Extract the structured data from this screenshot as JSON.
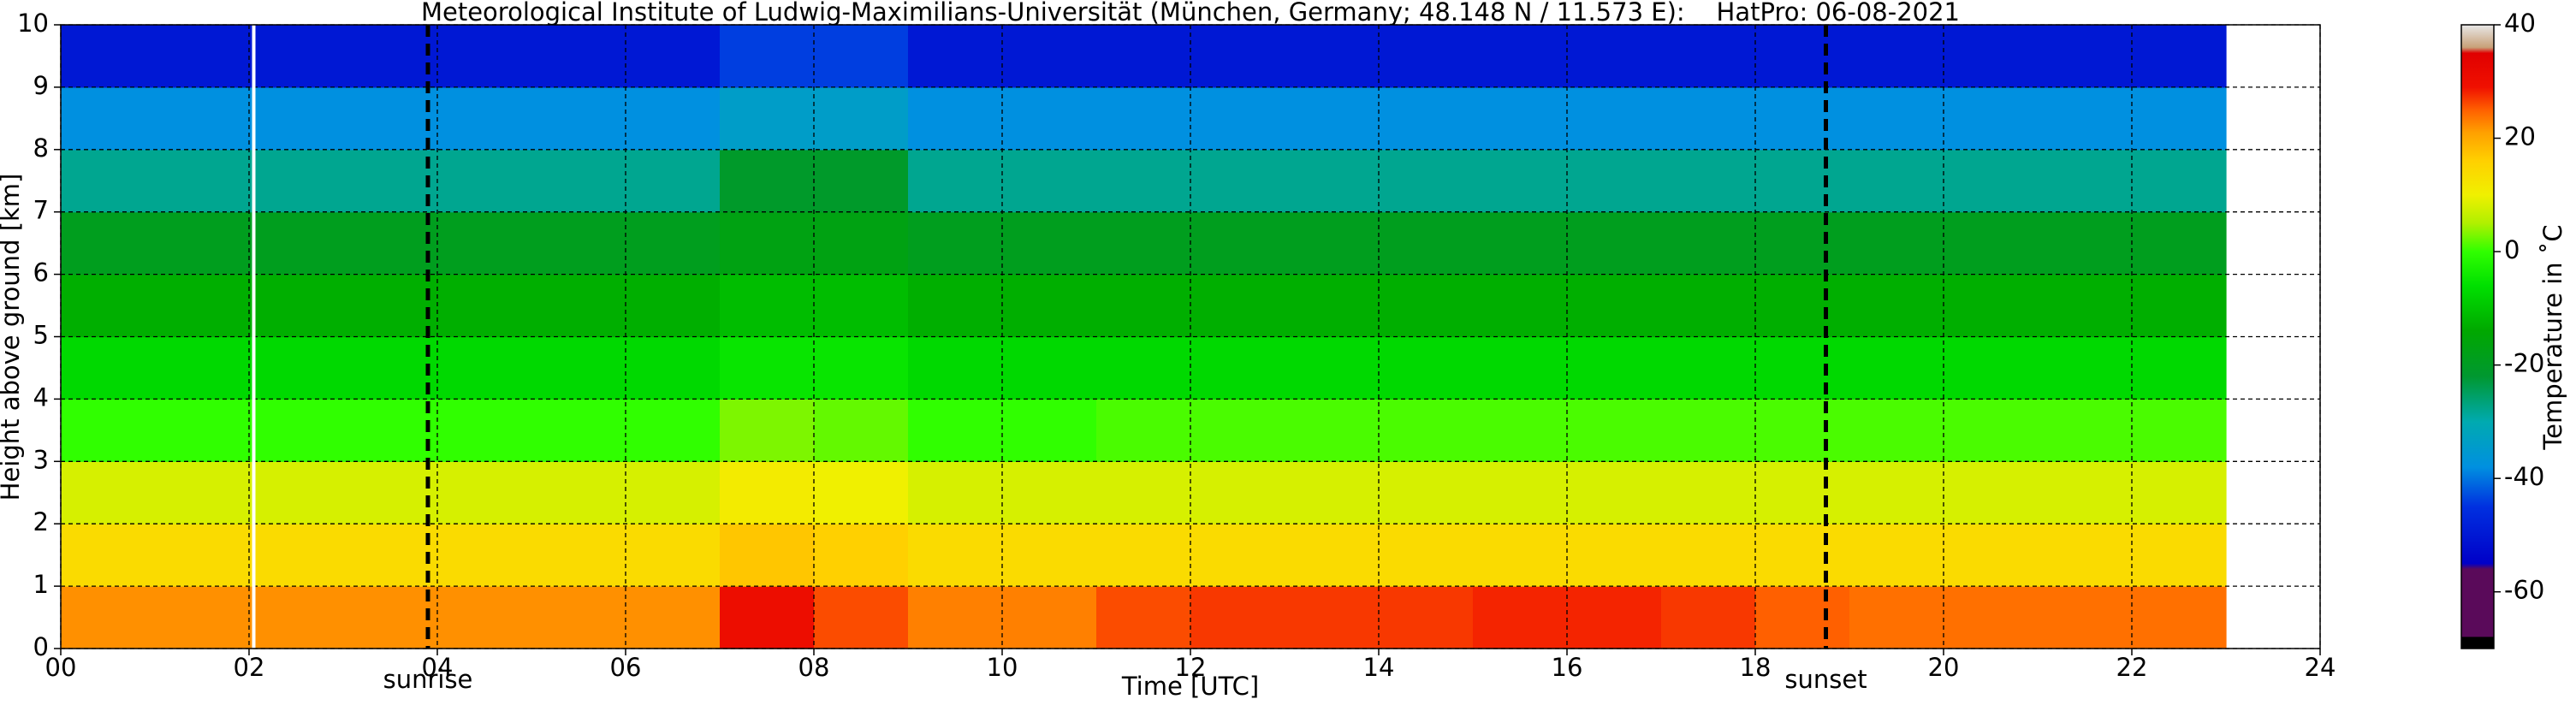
{
  "chart_data": {
    "type": "heatmap",
    "title": "Meteorological Institute of Ludwig-Maximilians-Universität (München, Germany; 48.148 N / 11.573 E):    HatPro: 06-08-2021",
    "x_label": "Time [UTC]",
    "y_label": "Height above ground [km]",
    "colorbar_label": "Temperature in ˚C",
    "xlim": [
      0,
      24
    ],
    "xticks": [
      {
        "value": 0,
        "label": "00"
      },
      {
        "value": 2,
        "label": "02"
      },
      {
        "value": 4,
        "label": "04"
      },
      {
        "value": 6,
        "label": "06"
      },
      {
        "value": 8,
        "label": "08"
      },
      10,
      12,
      14,
      16,
      18,
      20,
      22,
      24
    ],
    "ylim": [
      0,
      10
    ],
    "yticks": [
      0,
      1,
      2,
      3,
      4,
      5,
      6,
      7,
      8,
      9,
      10
    ],
    "grid": true,
    "x_bins": [
      0,
      1,
      2,
      3,
      4,
      5,
      6,
      7,
      8,
      9,
      10,
      11,
      12,
      13,
      14,
      15,
      16,
      17,
      18,
      19,
      20,
      21,
      22,
      23
    ],
    "y_bins": [
      0,
      1,
      2,
      3,
      4,
      5,
      6,
      7,
      8,
      9,
      10
    ],
    "values": [
      [
        22,
        22,
        22,
        22,
        22,
        22,
        22,
        30,
        26,
        23,
        23,
        26,
        27,
        27,
        27,
        28,
        28,
        27,
        25,
        24,
        24,
        24,
        24
      ],
      [
        14,
        14,
        14,
        14,
        14,
        14,
        14,
        17,
        16,
        14,
        14,
        14,
        14,
        14,
        14,
        14,
        14,
        14,
        14,
        14,
        14,
        14,
        14
      ],
      [
        8,
        8,
        8,
        8,
        8,
        8,
        8,
        11,
        10,
        8,
        8,
        8,
        8,
        8,
        8,
        8,
        8,
        8,
        8,
        8,
        8,
        8,
        8
      ],
      [
        0,
        0,
        0,
        0,
        0,
        0,
        0,
        3,
        2,
        0,
        0,
        1,
        1,
        1,
        1,
        1,
        1,
        1,
        1,
        1,
        1,
        1,
        1
      ],
      [
        -7,
        -7,
        -7,
        -7,
        -7,
        -7,
        -7,
        -5,
        -5,
        -7,
        -7,
        -7,
        -7,
        -7,
        -7,
        -7,
        -7,
        -7,
        -7,
        -7,
        -7,
        -7,
        -7
      ],
      [
        -13,
        -13,
        -13,
        -13,
        -13,
        -13,
        -13,
        -11,
        -11,
        -13,
        -13,
        -13,
        -13,
        -13,
        -13,
        -13,
        -13,
        -13,
        -13,
        -13,
        -13,
        -13,
        -13
      ],
      [
        -19,
        -19,
        -19,
        -19,
        -19,
        -19,
        -19,
        -17,
        -17,
        -19,
        -19,
        -19,
        -19,
        -19,
        -19,
        -19,
        -19,
        -19,
        -19,
        -19,
        -19,
        -19,
        -19
      ],
      [
        -28,
        -28,
        -28,
        -28,
        -28,
        -28,
        -28,
        -21,
        -21,
        -28,
        -28,
        -28,
        -28,
        -28,
        -28,
        -28,
        -28,
        -28,
        -28,
        -28,
        -28,
        -28,
        -28
      ],
      [
        -38,
        -38,
        -38,
        -38,
        -38,
        -38,
        -38,
        -34,
        -34,
        -38,
        -38,
        -38,
        -38,
        -38,
        -38,
        -38,
        -38,
        -38,
        -38,
        -38,
        -38,
        -38,
        -38
      ],
      [
        -50,
        -50,
        -50,
        -50,
        -50,
        -50,
        -50,
        -44,
        -44,
        -50,
        -50,
        -50,
        -50,
        -50,
        -50,
        -50,
        -50,
        -50,
        -50,
        -50,
        -50,
        -50,
        -50
      ]
    ],
    "clim": [
      -70,
      40
    ],
    "cticks": [
      -60,
      -40,
      -20,
      0,
      20,
      40
    ],
    "colormap": [
      [
        -70,
        "#000000"
      ],
      [
        -68,
        "#000000"
      ],
      [
        -67.9,
        "#5a0a5a"
      ],
      [
        -56,
        "#5a0a5a"
      ],
      [
        -55,
        "#0000c8"
      ],
      [
        -45,
        "#0030e0"
      ],
      [
        -38,
        "#0090e0"
      ],
      [
        -30,
        "#00aab0"
      ],
      [
        -22,
        "#009830"
      ],
      [
        -14,
        "#00a800"
      ],
      [
        -6,
        "#00e000"
      ],
      [
        0,
        "#30ff00"
      ],
      [
        5,
        "#b0f000"
      ],
      [
        10,
        "#f0f000"
      ],
      [
        16,
        "#ffd000"
      ],
      [
        21,
        "#ffa000"
      ],
      [
        25,
        "#ff6000"
      ],
      [
        29,
        "#f01000"
      ],
      [
        35,
        "#e00000"
      ],
      [
        36,
        "#c8a078"
      ],
      [
        40,
        "#e8e8e8"
      ]
    ],
    "vlines": [
      {
        "x": 2.05,
        "color": "#ffffff",
        "style": "solid"
      },
      {
        "x": 3.9,
        "color": "#000000",
        "style": "dashed",
        "label": "sunrise"
      },
      {
        "x": 18.75,
        "color": "#000000",
        "style": "dashed",
        "label": "sunset"
      }
    ]
  }
}
